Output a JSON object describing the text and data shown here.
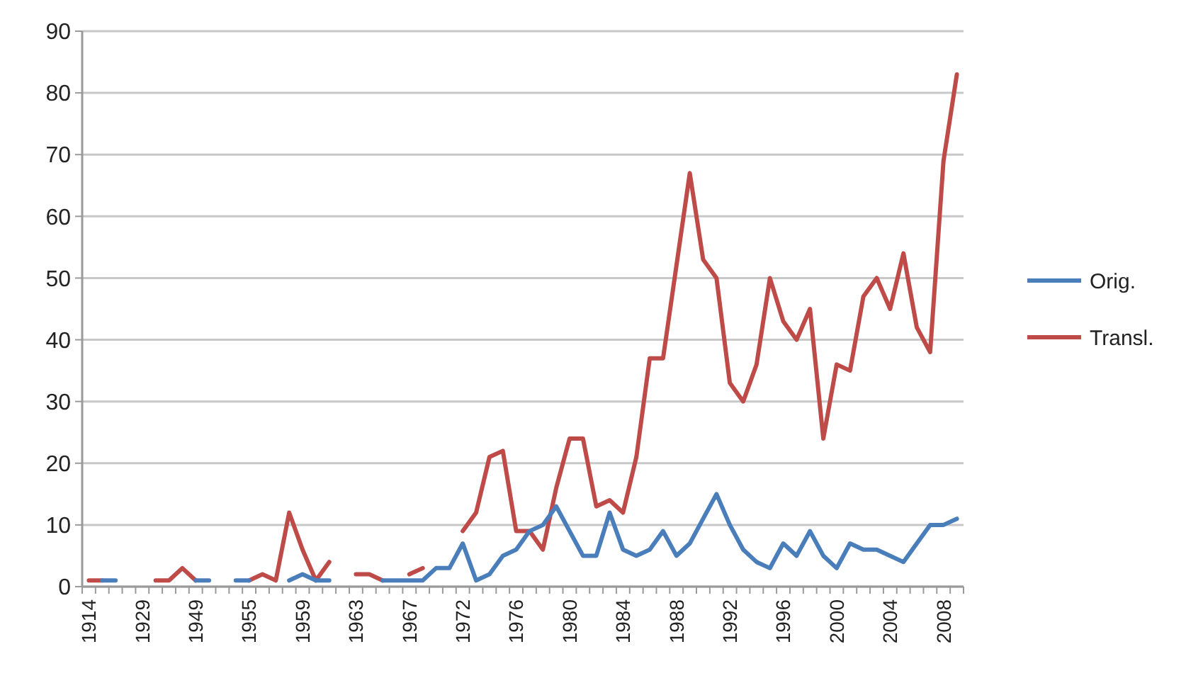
{
  "chart_data": {
    "type": "line",
    "categories": [
      "1914",
      null,
      null,
      null,
      "1929",
      null,
      null,
      null,
      "1949",
      null,
      null,
      null,
      "1955",
      null,
      null,
      null,
      "1959",
      null,
      null,
      null,
      "1963",
      null,
      null,
      null,
      "1967",
      null,
      null,
      null,
      "1972",
      null,
      null,
      null,
      "1976",
      null,
      null,
      null,
      "1980",
      null,
      null,
      null,
      "1984",
      null,
      null,
      null,
      "1988",
      null,
      null,
      null,
      "1992",
      null,
      null,
      null,
      "1996",
      null,
      null,
      null,
      "2000",
      null,
      null,
      null,
      "2004",
      null,
      null,
      null,
      "2008",
      null
    ],
    "series": [
      {
        "name": "Orig.",
        "color": "#4a7ebb",
        "values": [
          null,
          1,
          1,
          null,
          null,
          null,
          null,
          null,
          1,
          1,
          null,
          1,
          1,
          null,
          null,
          1,
          2,
          1,
          1,
          null,
          null,
          null,
          1,
          1,
          1,
          1,
          3,
          3,
          7,
          1,
          2,
          5,
          6,
          9,
          10,
          13,
          9,
          5,
          5,
          12,
          6,
          5,
          6,
          9,
          5,
          7,
          11,
          15,
          10,
          6,
          4,
          3,
          7,
          5,
          9,
          5,
          3,
          7,
          6,
          6,
          5,
          4,
          7,
          10,
          10,
          11
        ]
      },
      {
        "name": "Transl.",
        "color": "#be4b48",
        "values": [
          1,
          1,
          null,
          null,
          null,
          1,
          1,
          3,
          1,
          null,
          null,
          null,
          1,
          2,
          1,
          12,
          6,
          1,
          4,
          null,
          2,
          2,
          1,
          null,
          2,
          3,
          null,
          null,
          9,
          12,
          21,
          22,
          9,
          9,
          6,
          16,
          24,
          24,
          13,
          14,
          12,
          21,
          37,
          37,
          52,
          67,
          53,
          50,
          33,
          30,
          36,
          50,
          43,
          40,
          45,
          24,
          36,
          35,
          47,
          50,
          45,
          54,
          42,
          38,
          69,
          83
        ]
      }
    ],
    "ylim": [
      0,
      90
    ],
    "yticks": [
      0,
      10,
      20,
      30,
      40,
      50,
      60,
      70,
      80,
      90
    ],
    "grid": "y",
    "legend": "right",
    "line_style": "solid",
    "marker": "none"
  }
}
